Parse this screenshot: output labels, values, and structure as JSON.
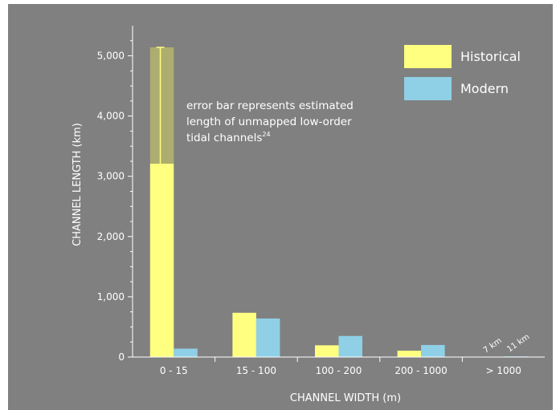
{
  "chart_data": {
    "type": "bar",
    "xlabel": "CHANNEL WIDTH (m)",
    "ylabel": "CHANNEL LENGTH (km)",
    "ylim": [
      0,
      5500
    ],
    "yticks": [
      0,
      1000,
      2000,
      3000,
      4000,
      5000
    ],
    "ytick_labels": [
      "0",
      "1,000",
      "2,000",
      "3,000",
      "4,000",
      "5,000"
    ],
    "categories": [
      "0 - 15",
      "15 - 100",
      "100 - 200",
      "200 - 1000",
      "> 1000"
    ],
    "series": [
      {
        "name": "Historical",
        "color": "#ffff80",
        "values": [
          3210,
          735,
          195,
          105,
          7
        ]
      },
      {
        "name": "Modern",
        "color": "#8fd0e6",
        "values": [
          140,
          640,
          350,
          200,
          11
        ]
      }
    ],
    "error_bar": {
      "category": "0 - 15",
      "series": "Historical",
      "upper": 5140,
      "fill": "#adad6f"
    },
    "annotation": {
      "lines": [
        "error bar represents estimated",
        "length of unmapped low-order",
        "tidal channels"
      ],
      "superscript": "24"
    },
    "bar_labels": [
      "7 km",
      "11 km"
    ],
    "legend_position": "top-right",
    "grid": false
  }
}
